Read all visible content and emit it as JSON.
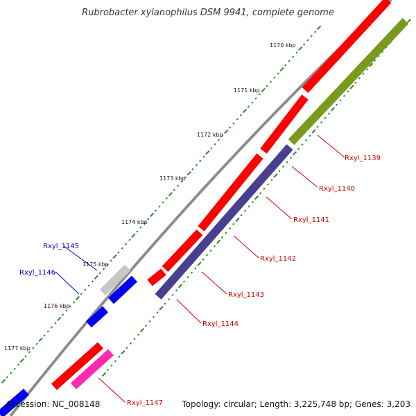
{
  "title": "Rubrobacter xylanophilus DSM 9941, complete genome",
  "footer": {
    "accession": "Accession: NC_008148",
    "summary": "Topology: circular; Length: 3,225,748 bp; Genes: 3,203"
  },
  "colors": {
    "backbone": "#8c8c8c",
    "forward_gene": "#ff0000",
    "reverse_gene_olive": "#7a9a1f",
    "reverse_gene_purple": "#4a3f8f",
    "forward_blue": "#0000ee",
    "grey_gene": "#c8c8c8",
    "pink_gene": "#ff2ab0",
    "gc_dots": "#228b22",
    "label_red": "#cc0000",
    "label_blue": "#0000cc"
  },
  "kbp_ticks": [
    "1170 kbp",
    "1171 kbp",
    "1172 kbp",
    "1173 kbp",
    "1174 kbp",
    "1175 kbp",
    "1176 kbp",
    "1177 kbp"
  ],
  "gene_labels": [
    {
      "name": "Rxyl_1139",
      "color": "red"
    },
    {
      "name": "Rxyl_1140",
      "color": "red"
    },
    {
      "name": "Rxyl_1141",
      "color": "red"
    },
    {
      "name": "Rxyl_1142",
      "color": "red"
    },
    {
      "name": "Rxyl_1143",
      "color": "red"
    },
    {
      "name": "Rxyl_1144",
      "color": "red"
    },
    {
      "name": "Rxyl_1145",
      "color": "blue"
    },
    {
      "name": "Rxyl_1146",
      "color": "blue"
    },
    {
      "name": "Rxyl_1147",
      "color": "red"
    }
  ]
}
